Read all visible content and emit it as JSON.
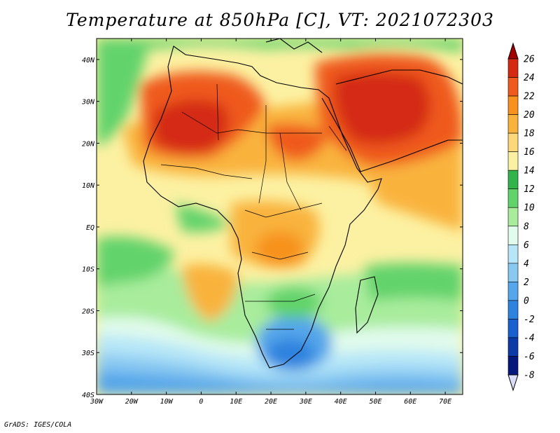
{
  "title": "Temperature at 850hPa [C], VT: 2021072303",
  "credit": "GrADS: IGES/COLA",
  "map": {
    "lat_labels": [
      "40N",
      "30N",
      "20N",
      "10N",
      "EQ",
      "10S",
      "20S",
      "30S",
      "40S"
    ],
    "lon_labels": [
      "30W",
      "20W",
      "10W",
      "0",
      "10E",
      "20E",
      "30E",
      "40E",
      "50E",
      "60E",
      "70E"
    ]
  },
  "colorbar": {
    "labels": [
      "26",
      "24",
      "22",
      "20",
      "18",
      "16",
      "14",
      "12",
      "10",
      "8",
      "6",
      "4",
      "2",
      "0",
      "-2",
      "-4",
      "-6",
      "-8"
    ],
    "colors": [
      "#a50000",
      "#d42a12",
      "#ef5a1e",
      "#f7921f",
      "#f9b33d",
      "#fbd97a",
      "#fcf1a2",
      "#33b44a",
      "#62d36a",
      "#a8ec9c",
      "#e1fbec",
      "#b6e6f8",
      "#88c8f1",
      "#55a6ea",
      "#2e83df",
      "#1a60cf",
      "#0c3ba8",
      "#06187c",
      "#dadcf8"
    ]
  },
  "chart_data": {
    "type": "heatmap",
    "title": "Temperature at 850hPa [C], VT: 2021072303",
    "xlim": [
      -30,
      75
    ],
    "ylim": [
      -40,
      45
    ],
    "x_ticks": [
      "30W",
      "20W",
      "10W",
      "0",
      "10E",
      "20E",
      "30E",
      "40E",
      "50E",
      "60E",
      "70E"
    ],
    "y_ticks": [
      "40N",
      "30N",
      "20N",
      "10N",
      "EQ",
      "10S",
      "20S",
      "30S",
      "40S"
    ],
    "color_levels": [
      -8,
      -6,
      -4,
      -2,
      0,
      2,
      4,
      6,
      8,
      10,
      12,
      14,
      16,
      18,
      20,
      22,
      24,
      26
    ],
    "units": "C"
  }
}
